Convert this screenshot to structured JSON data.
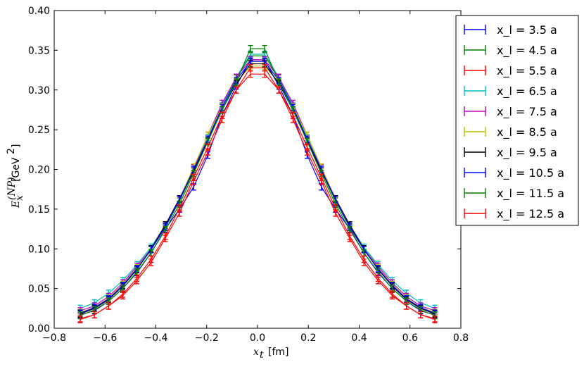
{
  "chart_data": {
    "type": "line",
    "title": "",
    "xlabel": "x_t [fm]",
    "ylabel": "E_x^(NP) [GeV^2 ]",
    "xlim": [
      -0.8,
      0.8
    ],
    "ylim": [
      0.0,
      0.4
    ],
    "xticks": [
      "−0.8",
      "−0.6",
      "−0.4",
      "−0.2",
      "0.0",
      "0.2",
      "0.4",
      "0.6",
      "0.8"
    ],
    "yticks": [
      "0.00",
      "0.05",
      "0.10",
      "0.15",
      "0.20",
      "0.25",
      "0.30",
      "0.35",
      "0.40"
    ],
    "grid": false,
    "legend_position": "outside-right",
    "x": [
      -0.6977,
      -0.6418,
      -0.586,
      -0.5302,
      -0.4744,
      -0.4186,
      -0.3628,
      -0.307,
      -0.2512,
      -0.1953,
      -0.1395,
      -0.0837,
      -0.0279,
      0.0279,
      0.0837,
      0.1395,
      0.1953,
      0.2512,
      0.307,
      0.3628,
      0.4186,
      0.4744,
      0.5302,
      0.586,
      0.6418,
      0.6977
    ],
    "series": [
      {
        "name": "x_l = 3.5 a",
        "color": "#0000ff",
        "values": [
          0.017,
          0.022,
          0.034,
          0.05,
          0.07,
          0.095,
          0.125,
          0.15,
          0.178,
          0.218,
          0.268,
          0.305,
          0.338,
          0.338,
          0.305,
          0.268,
          0.218,
          0.178,
          0.15,
          0.125,
          0.095,
          0.07,
          0.05,
          0.034,
          0.022,
          0.017
        ],
        "err": 0.004
      },
      {
        "name": "x_l = 4.5 a",
        "color": "#008000",
        "values": [
          0.018,
          0.025,
          0.036,
          0.053,
          0.074,
          0.099,
          0.127,
          0.16,
          0.198,
          0.238,
          0.278,
          0.315,
          0.343,
          0.343,
          0.315,
          0.278,
          0.238,
          0.198,
          0.16,
          0.127,
          0.099,
          0.074,
          0.053,
          0.036,
          0.025,
          0.018
        ],
        "err": 0.004
      },
      {
        "name": "x_l = 5.5 a",
        "color": "#ff0000",
        "values": [
          0.012,
          0.017,
          0.028,
          0.041,
          0.06,
          0.083,
          0.113,
          0.145,
          0.185,
          0.222,
          0.263,
          0.3,
          0.32,
          0.32,
          0.3,
          0.263,
          0.222,
          0.185,
          0.145,
          0.113,
          0.083,
          0.06,
          0.041,
          0.028,
          0.017,
          0.012
        ],
        "err": 0.004
      },
      {
        "name": "x_l = 6.5 a",
        "color": "#00bfbf",
        "values": [
          0.025,
          0.032,
          0.044,
          0.06,
          0.08,
          0.102,
          0.13,
          0.163,
          0.2,
          0.24,
          0.28,
          0.316,
          0.345,
          0.345,
          0.316,
          0.28,
          0.24,
          0.2,
          0.163,
          0.13,
          0.102,
          0.08,
          0.06,
          0.044,
          0.032,
          0.025
        ],
        "err": 0.004
      },
      {
        "name": "x_l = 7.5 a",
        "color": "#bf00bf",
        "values": [
          0.022,
          0.028,
          0.04,
          0.057,
          0.078,
          0.1,
          0.13,
          0.163,
          0.202,
          0.243,
          0.283,
          0.316,
          0.338,
          0.338,
          0.316,
          0.283,
          0.243,
          0.202,
          0.163,
          0.13,
          0.1,
          0.078,
          0.057,
          0.04,
          0.028,
          0.022
        ],
        "err": 0.004
      },
      {
        "name": "x_l = 8.5 a",
        "color": "#bfbf00",
        "values": [
          0.02,
          0.026,
          0.038,
          0.055,
          0.076,
          0.1,
          0.128,
          0.162,
          0.203,
          0.243,
          0.279,
          0.31,
          0.33,
          0.33,
          0.31,
          0.279,
          0.243,
          0.203,
          0.162,
          0.128,
          0.1,
          0.076,
          0.055,
          0.038,
          0.026,
          0.02
        ],
        "err": 0.004
      },
      {
        "name": "x_l = 9.5 a",
        "color": "#000000",
        "values": [
          0.018,
          0.025,
          0.036,
          0.053,
          0.074,
          0.1,
          0.13,
          0.163,
          0.198,
          0.236,
          0.275,
          0.308,
          0.333,
          0.333,
          0.308,
          0.275,
          0.236,
          0.198,
          0.163,
          0.13,
          0.1,
          0.074,
          0.053,
          0.036,
          0.025,
          0.018
        ],
        "err": 0.004
      },
      {
        "name": "x_l = 10.5 a",
        "color": "#0000ff",
        "values": [
          0.019,
          0.026,
          0.037,
          0.054,
          0.075,
          0.099,
          0.128,
          0.162,
          0.2,
          0.238,
          0.278,
          0.312,
          0.336,
          0.336,
          0.312,
          0.278,
          0.238,
          0.2,
          0.162,
          0.128,
          0.099,
          0.075,
          0.054,
          0.037,
          0.026,
          0.019
        ],
        "err": 0.004
      },
      {
        "name": "x_l = 11.5 a",
        "color": "#008000",
        "values": [
          0.016,
          0.023,
          0.034,
          0.05,
          0.071,
          0.095,
          0.124,
          0.156,
          0.195,
          0.235,
          0.275,
          0.31,
          0.352,
          0.352,
          0.31,
          0.275,
          0.235,
          0.195,
          0.156,
          0.124,
          0.095,
          0.071,
          0.05,
          0.034,
          0.023,
          0.016
        ],
        "err": 0.004
      },
      {
        "name": "x_l = 12.5 a",
        "color": "#ff0000",
        "values": [
          0.011,
          0.017,
          0.028,
          0.043,
          0.063,
          0.087,
          0.116,
          0.151,
          0.19,
          0.228,
          0.268,
          0.3,
          0.328,
          0.328,
          0.3,
          0.268,
          0.228,
          0.19,
          0.151,
          0.116,
          0.087,
          0.063,
          0.043,
          0.028,
          0.017,
          0.011
        ],
        "err": 0.004
      }
    ]
  }
}
